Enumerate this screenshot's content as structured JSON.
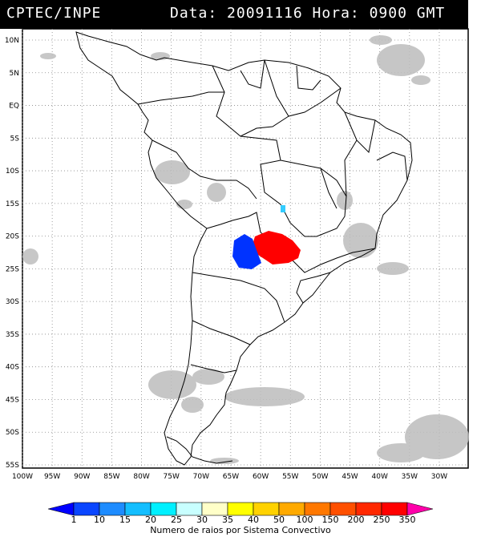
{
  "header": {
    "agency": "CPTEC/INPE",
    "datetime": "Data: 20091116 Hora: 0900 GMT"
  },
  "map": {
    "lat_labels": [
      "10N",
      "5N",
      "EQ",
      "5S",
      "10S",
      "15S",
      "20S",
      "25S",
      "30S",
      "35S",
      "40S",
      "45S",
      "50S",
      "55S"
    ],
    "lon_labels": [
      "100W",
      "95W",
      "90W",
      "85W",
      "80W",
      "75W",
      "70W",
      "65W",
      "60W",
      "55W",
      "50W",
      "45W",
      "40W",
      "35W",
      "30W"
    ],
    "lat_values": [
      10,
      5,
      0,
      -5,
      -10,
      -15,
      -20,
      -25,
      -30,
      -35,
      -40,
      -45,
      -50,
      -55
    ],
    "lon_values": [
      -100,
      -95,
      -90,
      -85,
      -80,
      -75,
      -70,
      -65,
      -60,
      -55,
      -50,
      -45,
      -40,
      -35,
      -30
    ],
    "cluster_colors": {
      "red": "#ff0000",
      "blue": "#0033ff",
      "cyan": "#33ccff",
      "cloud": "#bdbdbd"
    }
  },
  "colorbar": {
    "title": "Numero de raios por Sistema Convectivo",
    "labels": [
      "1",
      "10",
      "15",
      "20",
      "25",
      "30",
      "35",
      "40",
      "50",
      "100",
      "150",
      "200",
      "250",
      "350"
    ],
    "colors": [
      "#0000ff",
      "#0a46ff",
      "#1e8cff",
      "#14beff",
      "#00f0ff",
      "#c8ffff",
      "#ffffc8",
      "#ffff00",
      "#ffd200",
      "#ffaa00",
      "#ff7800",
      "#ff5000",
      "#ff2800",
      "#ff0000",
      "#ff00aa"
    ]
  }
}
